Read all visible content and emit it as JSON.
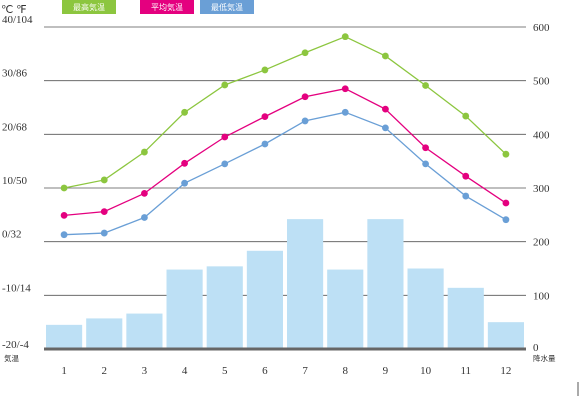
{
  "chart_data": {
    "type": "bar+line",
    "unit_label": "℃ ℉",
    "left_axis_ticks": [
      "40/104",
      "30/86",
      "20/68",
      "10/50",
      "0/32",
      "-10/14",
      "-20/-4"
    ],
    "left_axis_values": [
      40,
      30,
      20,
      10,
      0,
      -10,
      -20
    ],
    "right_axis_ticks": [
      "600",
      "500",
      "400",
      "300",
      "200",
      "100",
      "0"
    ],
    "right_axis_values": [
      600,
      500,
      400,
      300,
      200,
      100,
      0
    ],
    "left_axis_caption": "気温",
    "right_axis_caption": "降水量",
    "categories": [
      "1",
      "2",
      "3",
      "4",
      "5",
      "6",
      "7",
      "8",
      "9",
      "10",
      "11",
      "12"
    ],
    "temp_range": [
      -20,
      40
    ],
    "precip_range": [
      0,
      600
    ],
    "precipitation": [
      45,
      57,
      66,
      148,
      154,
      183,
      242,
      148,
      242,
      150,
      114,
      50
    ],
    "precip_color": "#bde0f5",
    "series": [
      {
        "name": "最高気温",
        "color": "#8cc63f",
        "values": [
          10.0,
          11.5,
          16.7,
          24.1,
          29.2,
          32.0,
          35.2,
          38.2,
          34.6,
          29.1,
          23.4,
          16.3
        ]
      },
      {
        "name": "平均気温",
        "color": "#e4007f",
        "values": [
          4.9,
          5.6,
          9.0,
          14.6,
          19.5,
          23.3,
          27.0,
          28.5,
          24.7,
          17.5,
          12.2,
          7.2
        ]
      },
      {
        "name": "最低気温",
        "color": "#6a9fd6",
        "values": [
          1.3,
          1.6,
          4.5,
          10.9,
          14.5,
          18.2,
          22.5,
          24.1,
          21.2,
          14.5,
          8.5,
          4.1
        ]
      }
    ]
  }
}
